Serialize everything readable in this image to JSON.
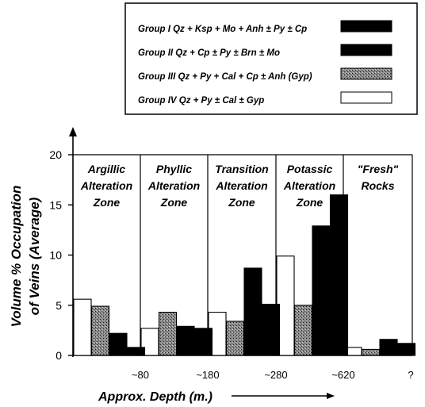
{
  "chart_data": {
    "type": "bar",
    "title": "",
    "ylabel": "Volume % Occupation of Veins (Average)",
    "xlabel": "Approx. Depth (m.)",
    "ylim": [
      0,
      20
    ],
    "yticks": [
      0,
      5,
      10,
      15,
      20
    ],
    "depth_ticks": [
      "~80",
      "~180",
      "~280",
      "~620",
      "?"
    ],
    "legend_position": "top-right",
    "legend": [
      {
        "group": "Group I",
        "formula": "Qz + Ksp + Mo + Anh ± Py ± Cp",
        "fill": "black"
      },
      {
        "group": "Group II",
        "formula": "Qz + Cp ± Py ± Brn ± Mo",
        "fill": "black"
      },
      {
        "group": "Group III",
        "formula": "Qz + Py + Cal + Cp ± Anh (Gyp)",
        "fill": "stipple"
      },
      {
        "group": "Group IV",
        "formula": "Qz + Py ± Cal ± Gyp",
        "fill": "white"
      }
    ],
    "categories": [
      "Argillic Alteration Zone",
      "Phyllic Alteration Zone",
      "Transition Alteration Zone",
      "Potassic Alteration Zone",
      "\"Fresh\" Rocks"
    ],
    "zone_labels": [
      [
        "Argillic",
        "Alteration",
        "Zone"
      ],
      [
        "Phyllic",
        "Alteration",
        "Zone"
      ],
      [
        "Transition",
        "Alteration",
        "Zone"
      ],
      [
        "Potassic",
        "Alteration",
        "Zone"
      ],
      [
        "\"Fresh\"",
        "Rocks"
      ]
    ],
    "series": [
      {
        "name": "Group IV",
        "values": [
          5.6,
          2.7,
          4.3,
          9.9,
          0.8
        ]
      },
      {
        "name": "Group III",
        "values": [
          4.9,
          4.3,
          3.4,
          5.0,
          0.6
        ]
      },
      {
        "name": "Group II",
        "values": [
          2.2,
          2.9,
          8.7,
          12.9,
          1.6
        ]
      },
      {
        "name": "Group I",
        "values": [
          0.8,
          2.7,
          5.1,
          16.0,
          1.2
        ]
      }
    ]
  }
}
